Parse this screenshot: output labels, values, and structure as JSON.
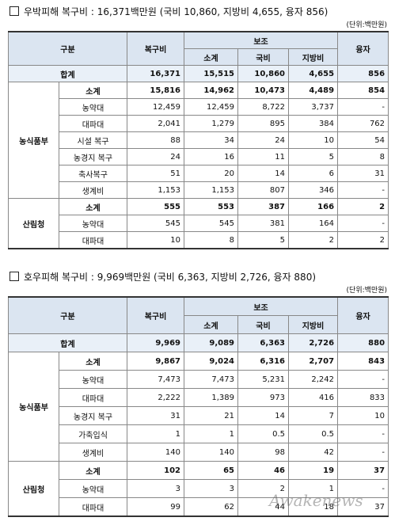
{
  "sections": [
    {
      "title": "우박피해 복구비 : 16,371백만원 (국비 10,860, 지방비 4,655, 융자 856)",
      "unit": "(단위:백만원)",
      "header": {
        "category": "구분",
        "cost": "복구비",
        "subsidy": "보조",
        "subtotal": "소계",
        "national": "국비",
        "local": "지방비",
        "loan": "융자"
      },
      "total": {
        "label": "합계",
        "cells": [
          "16,371",
          "15,515",
          "10,860",
          "4,655",
          "856"
        ]
      },
      "groups": [
        {
          "name": "농식품부",
          "rows": [
            {
              "label": "소계",
              "cells": [
                "15,816",
                "14,962",
                "10,473",
                "4,489",
                "854"
              ]
            },
            {
              "label": "농약대",
              "cells": [
                "12,459",
                "12,459",
                "8,722",
                "3,737",
                "-"
              ]
            },
            {
              "label": "대파대",
              "cells": [
                "2,041",
                "1,279",
                "895",
                "384",
                "762"
              ]
            },
            {
              "label": "시설 복구",
              "cells": [
                "88",
                "34",
                "24",
                "10",
                "54"
              ]
            },
            {
              "label": "농경지 복구",
              "cells": [
                "24",
                "16",
                "11",
                "5",
                "8"
              ]
            },
            {
              "label": "축사복구",
              "cells": [
                "51",
                "20",
                "14",
                "6",
                "31"
              ]
            },
            {
              "label": "생계비",
              "cells": [
                "1,153",
                "1,153",
                "807",
                "346",
                "-"
              ]
            }
          ]
        },
        {
          "name": "산림청",
          "rows": [
            {
              "label": "소계",
              "cells": [
                "555",
                "553",
                "387",
                "166",
                "2"
              ]
            },
            {
              "label": "농약대",
              "cells": [
                "545",
                "545",
                "381",
                "164",
                "-"
              ]
            },
            {
              "label": "대파대",
              "cells": [
                "10",
                "8",
                "5",
                "2",
                "2"
              ]
            }
          ]
        }
      ]
    },
    {
      "title": "호우피해 복구비 : 9,969백만원 (국비 6,363, 지방비 2,726, 융자 880)",
      "unit": "(단위:백만원)",
      "header": {
        "category": "구분",
        "cost": "복구비",
        "subsidy": "보조",
        "subtotal": "소계",
        "national": "국비",
        "local": "지방비",
        "loan": "융자"
      },
      "total": {
        "label": "합계",
        "cells": [
          "9,969",
          "9,089",
          "6,363",
          "2,726",
          "880"
        ]
      },
      "groups": [
        {
          "name": "농식품부",
          "rows": [
            {
              "label": "소계",
              "cells": [
                "9,867",
                "9,024",
                "6,316",
                "2,707",
                "843"
              ]
            },
            {
              "label": "농약대",
              "cells": [
                "7,473",
                "7,473",
                "5,231",
                "2,242",
                "-"
              ]
            },
            {
              "label": "대파대",
              "cells": [
                "2,222",
                "1,389",
                "973",
                "416",
                "833"
              ]
            },
            {
              "label": "농경지 복구",
              "cells": [
                "31",
                "21",
                "14",
                "7",
                "10"
              ]
            },
            {
              "label": "가축입식",
              "cells": [
                "1",
                "1",
                "0.5",
                "0.5",
                "-"
              ]
            },
            {
              "label": "생계비",
              "cells": [
                "140",
                "140",
                "98",
                "42",
                "-"
              ]
            }
          ]
        },
        {
          "name": "산림청",
          "rows": [
            {
              "label": "소계",
              "cells": [
                "102",
                "65",
                "46",
                "19",
                "37"
              ]
            },
            {
              "label": "농약대",
              "cells": [
                "3",
                "3",
                "2",
                "1",
                "-"
              ]
            },
            {
              "label": "대파대",
              "cells": [
                "99",
                "62",
                "44",
                "18",
                "37"
              ]
            }
          ]
        }
      ]
    }
  ],
  "watermark": "Awakenews"
}
